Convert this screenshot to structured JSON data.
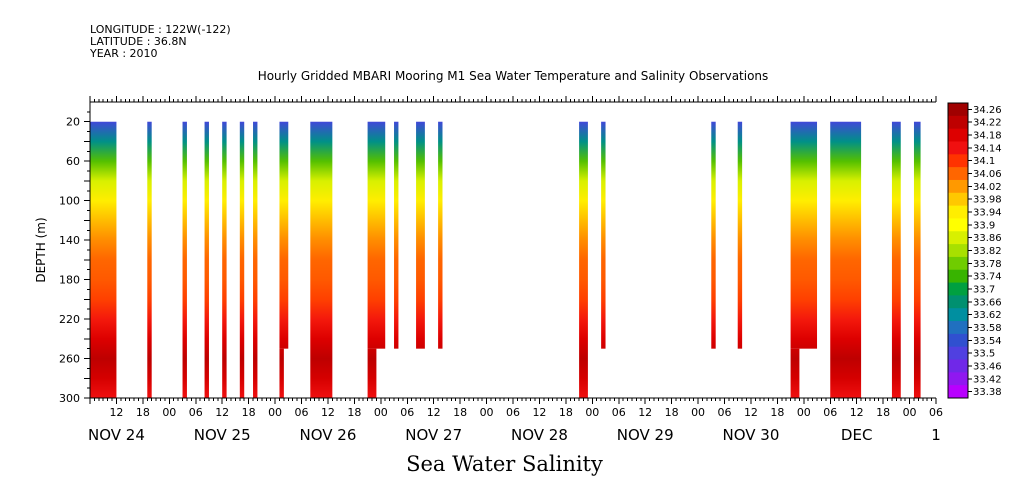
{
  "header": {
    "longitude": "LONGITUDE : 122W(-122)",
    "latitude": "LATITUDE : 36.8N",
    "year": "YEAR : 2010"
  },
  "chart_data": {
    "type": "heatmap",
    "title": "Hourly Gridded MBARI Mooring M1 Sea Water Temperature and Salinity Observations",
    "footer_label": "Sea Water Salinity",
    "ylabel": "DEPTH (m)",
    "y_axis": {
      "range": [
        0,
        300
      ],
      "inverted": true,
      "ticks": [
        20,
        60,
        100,
        140,
        180,
        220,
        260,
        300
      ]
    },
    "x_axis": {
      "range_hours": [
        -18,
        174
      ],
      "hour_ticks": [
        {
          "h": -12,
          "label": "12"
        },
        {
          "h": -6,
          "label": "18"
        },
        {
          "h": 0,
          "label": "00"
        },
        {
          "h": 6,
          "label": "06"
        },
        {
          "h": 12,
          "label": "12"
        },
        {
          "h": 18,
          "label": "18"
        },
        {
          "h": 24,
          "label": "00"
        },
        {
          "h": 30,
          "label": "06"
        },
        {
          "h": 36,
          "label": "12"
        },
        {
          "h": 42,
          "label": "18"
        },
        {
          "h": 48,
          "label": "00"
        },
        {
          "h": 54,
          "label": "06"
        },
        {
          "h": 60,
          "label": "12"
        },
        {
          "h": 66,
          "label": "18"
        },
        {
          "h": 72,
          "label": "00"
        },
        {
          "h": 78,
          "label": "06"
        },
        {
          "h": 84,
          "label": "12"
        },
        {
          "h": 90,
          "label": "18"
        },
        {
          "h": 96,
          "label": "00"
        },
        {
          "h": 102,
          "label": "06"
        },
        {
          "h": 108,
          "label": "12"
        },
        {
          "h": 114,
          "label": "18"
        },
        {
          "h": 120,
          "label": "00"
        },
        {
          "h": 126,
          "label": "06"
        },
        {
          "h": 132,
          "label": "12"
        },
        {
          "h": 138,
          "label": "18"
        },
        {
          "h": 144,
          "label": "00"
        },
        {
          "h": 150,
          "label": "06"
        },
        {
          "h": 156,
          "label": "12"
        },
        {
          "h": 162,
          "label": "18"
        },
        {
          "h": 168,
          "label": "00"
        },
        {
          "h": 174,
          "label": "06"
        }
      ],
      "day_labels": [
        {
          "h": -12,
          "label": "NOV 24"
        },
        {
          "h": 12,
          "label": "NOV 25"
        },
        {
          "h": 36,
          "label": "NOV 26"
        },
        {
          "h": 60,
          "label": "NOV 27"
        },
        {
          "h": 84,
          "label": "NOV 28"
        },
        {
          "h": 108,
          "label": "NOV 29"
        },
        {
          "h": 132,
          "label": "NOV 30"
        },
        {
          "h": 156,
          "label": "DEC"
        },
        {
          "h": 174,
          "label": "1"
        }
      ]
    },
    "profile": {
      "depths": [
        20,
        40,
        60,
        80,
        100,
        120,
        140,
        160,
        180,
        200,
        220,
        240,
        260,
        280,
        300
      ],
      "salinity": [
        33.52,
        33.64,
        33.76,
        33.86,
        33.94,
        33.99,
        34.03,
        34.06,
        34.07,
        34.09,
        34.13,
        34.18,
        34.22,
        34.19,
        34.14
      ]
    },
    "segments": [
      {
        "start": -18,
        "end": -12,
        "depth_min": 20,
        "depth_max": 300
      },
      {
        "start": -5,
        "end": -4,
        "depth_min": 20,
        "depth_max": 300
      },
      {
        "start": 3,
        "end": 4,
        "depth_min": 20,
        "depth_max": 300
      },
      {
        "start": 8,
        "end": 9,
        "depth_min": 20,
        "depth_max": 300
      },
      {
        "start": 12,
        "end": 13,
        "depth_min": 20,
        "depth_max": 300
      },
      {
        "start": 16,
        "end": 17,
        "depth_min": 20,
        "depth_max": 300
      },
      {
        "start": 19,
        "end": 20,
        "depth_min": 20,
        "depth_max": 300
      },
      {
        "start": 25,
        "end": 27,
        "depth_min": 20,
        "depth_max": 250
      },
      {
        "start": 25,
        "end": 26,
        "depth_min": 250,
        "depth_max": 300
      },
      {
        "start": 32,
        "end": 37,
        "depth_min": 20,
        "depth_max": 300
      },
      {
        "start": 45,
        "end": 49,
        "depth_min": 20,
        "depth_max": 250
      },
      {
        "start": 45,
        "end": 47,
        "depth_min": 250,
        "depth_max": 300
      },
      {
        "start": 51,
        "end": 52,
        "depth_min": 20,
        "depth_max": 250
      },
      {
        "start": 56,
        "end": 58,
        "depth_min": 20,
        "depth_max": 250
      },
      {
        "start": 61,
        "end": 62,
        "depth_min": 20,
        "depth_max": 250
      },
      {
        "start": 93,
        "end": 95,
        "depth_min": 20,
        "depth_max": 300
      },
      {
        "start": 98,
        "end": 99,
        "depth_min": 20,
        "depth_max": 250
      },
      {
        "start": 123,
        "end": 124,
        "depth_min": 20,
        "depth_max": 250
      },
      {
        "start": 129,
        "end": 130,
        "depth_min": 20,
        "depth_max": 250
      },
      {
        "start": 141,
        "end": 147,
        "depth_min": 20,
        "depth_max": 250
      },
      {
        "start": 141,
        "end": 143,
        "depth_min": 250,
        "depth_max": 300
      },
      {
        "start": 150,
        "end": 157,
        "depth_min": 20,
        "depth_max": 300
      },
      {
        "start": 164,
        "end": 166,
        "depth_min": 20,
        "depth_max": 300
      },
      {
        "start": 169,
        "end": 170.5,
        "depth_min": 20,
        "depth_max": 300
      }
    ],
    "colorbar": {
      "labels": [
        "34.26",
        "34.22",
        "34.18",
        "34.14",
        "34.1",
        "34.06",
        "34.02",
        "33.98",
        "33.94",
        "33.9",
        "33.86",
        "33.82",
        "33.78",
        "33.74",
        "33.7",
        "33.66",
        "33.62",
        "33.58",
        "33.54",
        "33.5",
        "33.46",
        "33.42",
        "33.38"
      ],
      "colors": [
        "#a00000",
        "#be0000",
        "#dd0000",
        "#f01010",
        "#ff3300",
        "#ff6600",
        "#ff9900",
        "#ffc800",
        "#ffee00",
        "#ffff00",
        "#d8f000",
        "#a8e000",
        "#70cc00",
        "#38b400",
        "#00a040",
        "#009070",
        "#008fa0",
        "#2070c0",
        "#3050d0",
        "#5040e0",
        "#7028e8",
        "#9018f0",
        "#b800ff"
      ]
    }
  }
}
